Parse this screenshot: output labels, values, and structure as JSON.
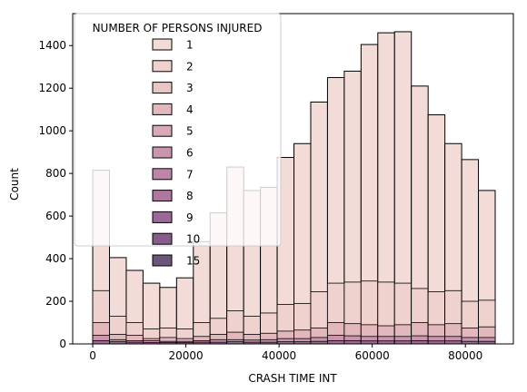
{
  "chart_data": {
    "type": "bar",
    "stacked": true,
    "xlabel": "CRASH TIME INT",
    "ylabel": "Count",
    "xlim": [
      -4300,
      90300
    ],
    "ylim": [
      0,
      1550
    ],
    "x_ticks": [
      0,
      20000,
      40000,
      60000,
      80000
    ],
    "x_tick_labels": [
      "0",
      "20000",
      "40000",
      "60000",
      "80000"
    ],
    "y_ticks": [
      0,
      200,
      400,
      600,
      800,
      1000,
      1200,
      1400
    ],
    "y_tick_labels": [
      "0",
      "200",
      "400",
      "600",
      "800",
      "1000",
      "1200",
      "1400"
    ],
    "bin_edges": [
      0,
      3600,
      7200,
      10800,
      14400,
      18000,
      21600,
      25200,
      28800,
      32400,
      36000,
      39600,
      43200,
      46800,
      50400,
      54000,
      57600,
      61200,
      64800,
      68400,
      72000,
      75600,
      79200,
      82800,
      86400
    ],
    "stack_tops": {
      "total": [
        815,
        405,
        345,
        285,
        265,
        310,
        480,
        615,
        830,
        720,
        735,
        875,
        940,
        1135,
        1250,
        1280,
        1405,
        1460,
        1465,
        1210,
        1075,
        940,
        865,
        720
      ],
      "level_2": [
        250,
        130,
        100,
        70,
        75,
        70,
        100,
        120,
        155,
        130,
        145,
        185,
        190,
        245,
        285,
        290,
        295,
        290,
        285,
        260,
        245,
        250,
        200,
        205
      ],
      "level_3": [
        100,
        45,
        40,
        25,
        30,
        25,
        35,
        45,
        55,
        45,
        50,
        60,
        65,
        75,
        100,
        95,
        90,
        85,
        90,
        100,
        90,
        95,
        75,
        80
      ],
      "level_4": [
        40,
        20,
        15,
        15,
        12,
        12,
        15,
        20,
        20,
        18,
        20,
        25,
        25,
        30,
        40,
        38,
        35,
        35,
        35,
        38,
        35,
        35,
        30,
        30
      ],
      "level_5": [
        15,
        10,
        8,
        6,
        6,
        6,
        8,
        8,
        10,
        8,
        8,
        10,
        10,
        12,
        15,
        15,
        14,
        14,
        14,
        15,
        14,
        14,
        12,
        12
      ]
    },
    "legend": {
      "title": "NUMBER OF PERSONS INJURED",
      "placement": "upper-left",
      "entries": [
        {
          "label": "1",
          "color": "#f3dcd8"
        },
        {
          "label": "2",
          "color": "#efd1cd"
        },
        {
          "label": "3",
          "color": "#e9c5c4"
        },
        {
          "label": "4",
          "color": "#e3b8bc"
        },
        {
          "label": "5",
          "color": "#d9a9b6"
        },
        {
          "label": "6",
          "color": "#cb96ad"
        },
        {
          "label": "7",
          "color": "#bd86a6"
        },
        {
          "label": "8",
          "color": "#ad779e"
        },
        {
          "label": "9",
          "color": "#9c6996"
        },
        {
          "label": "10",
          "color": "#875c8a"
        },
        {
          "label": "15",
          "color": "#6b5578"
        }
      ]
    },
    "grid": false
  }
}
